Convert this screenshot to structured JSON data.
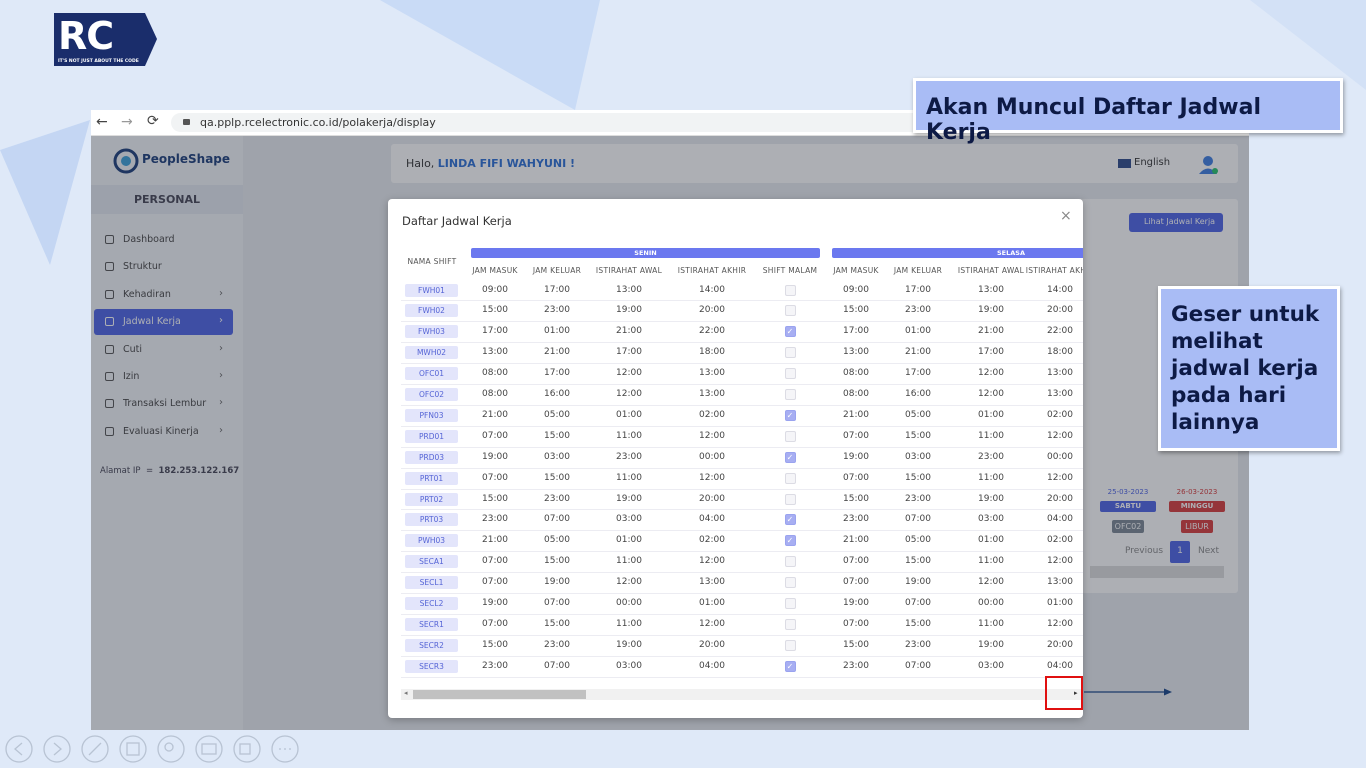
{
  "logo": {
    "mark": "RC",
    "tagline": "IT'S NOT JUST ABOUT THE CODE"
  },
  "browser": {
    "url": "qa.pplp.rcelectronic.co.id/polakerja/display"
  },
  "sidebar": {
    "brand": "PeopleShape",
    "section": "PERSONAL",
    "active_menu": 3,
    "menu": [
      {
        "label": "Dashboard",
        "submenu": false
      },
      {
        "label": "Struktur",
        "submenu": false
      },
      {
        "label": "Kehadiran",
        "submenu": true
      },
      {
        "label": "Jadwal Kerja",
        "submenu": true
      },
      {
        "label": "Cuti",
        "submenu": true
      },
      {
        "label": "Izin",
        "submenu": true
      },
      {
        "label": "Transaksi Lembur",
        "submenu": true
      },
      {
        "label": "Evaluasi Kinerja",
        "submenu": true
      }
    ],
    "ip_label": "Alamat IP",
    "ip_sep": "=",
    "ip": "182.253.122.167"
  },
  "header": {
    "greeting": "Halo,",
    "user": "LINDA FIFI WAHYUNI !",
    "language": "English"
  },
  "background": {
    "button": "Lihat Jadwal Kerja",
    "calendar": [
      {
        "date": "25-03-2023",
        "day": "SABTU",
        "shift": "OFC02"
      },
      {
        "date": "26-03-2023",
        "day": "MINGGU",
        "shift": "LIBUR"
      }
    ],
    "pagination": {
      "previous": "Previous",
      "page": "1",
      "next": "Next"
    }
  },
  "modal": {
    "title": "Daftar Jadwal Kerja",
    "close": "×",
    "table": {
      "shift_header": "NAMA SHIFT",
      "days": [
        "SENIN",
        "SELASA"
      ],
      "columns": [
        "JAM MASUK",
        "JAM KELUAR",
        "ISTIRAHAT AWAL",
        "ISTIRAHAT AKHIR",
        "SHIFT MALAM"
      ],
      "rows": [
        {
          "shift": "FWH01",
          "senin": [
            "09:00",
            "17:00",
            "13:00",
            "14:00"
          ],
          "night_shift": false,
          "selasa": [
            "09:00",
            "17:00",
            "13:00",
            "14:00"
          ]
        },
        {
          "shift": "FWH02",
          "senin": [
            "15:00",
            "23:00",
            "19:00",
            "20:00"
          ],
          "night_shift": false,
          "selasa": [
            "15:00",
            "23:00",
            "19:00",
            "20:00"
          ]
        },
        {
          "shift": "FWH03",
          "senin": [
            "17:00",
            "01:00",
            "21:00",
            "22:00"
          ],
          "night_shift": true,
          "selasa": [
            "17:00",
            "01:00",
            "21:00",
            "22:00"
          ]
        },
        {
          "shift": "MWH02",
          "senin": [
            "13:00",
            "21:00",
            "17:00",
            "18:00"
          ],
          "night_shift": false,
          "selasa": [
            "13:00",
            "21:00",
            "17:00",
            "18:00"
          ]
        },
        {
          "shift": "OFC01",
          "senin": [
            "08:00",
            "17:00",
            "12:00",
            "13:00"
          ],
          "night_shift": false,
          "selasa": [
            "08:00",
            "17:00",
            "12:00",
            "13:00"
          ]
        },
        {
          "shift": "OFC02",
          "senin": [
            "08:00",
            "16:00",
            "12:00",
            "13:00"
          ],
          "night_shift": false,
          "selasa": [
            "08:00",
            "16:00",
            "12:00",
            "13:00"
          ]
        },
        {
          "shift": "PFN03",
          "senin": [
            "21:00",
            "05:00",
            "01:00",
            "02:00"
          ],
          "night_shift": true,
          "selasa": [
            "21:00",
            "05:00",
            "01:00",
            "02:00"
          ]
        },
        {
          "shift": "PRD01",
          "senin": [
            "07:00",
            "15:00",
            "11:00",
            "12:00"
          ],
          "night_shift": false,
          "selasa": [
            "07:00",
            "15:00",
            "11:00",
            "12:00"
          ]
        },
        {
          "shift": "PRD03",
          "senin": [
            "19:00",
            "03:00",
            "23:00",
            "00:00"
          ],
          "night_shift": true,
          "selasa": [
            "19:00",
            "03:00",
            "23:00",
            "00:00"
          ]
        },
        {
          "shift": "PRT01",
          "senin": [
            "07:00",
            "15:00",
            "11:00",
            "12:00"
          ],
          "night_shift": false,
          "selasa": [
            "07:00",
            "15:00",
            "11:00",
            "12:00"
          ]
        },
        {
          "shift": "PRT02",
          "senin": [
            "15:00",
            "23:00",
            "19:00",
            "20:00"
          ],
          "night_shift": false,
          "selasa": [
            "15:00",
            "23:00",
            "19:00",
            "20:00"
          ]
        },
        {
          "shift": "PRT03",
          "senin": [
            "23:00",
            "07:00",
            "03:00",
            "04:00"
          ],
          "night_shift": true,
          "selasa": [
            "23:00",
            "07:00",
            "03:00",
            "04:00"
          ]
        },
        {
          "shift": "PWH03",
          "senin": [
            "21:00",
            "05:00",
            "01:00",
            "02:00"
          ],
          "night_shift": true,
          "selasa": [
            "21:00",
            "05:00",
            "01:00",
            "02:00"
          ]
        },
        {
          "shift": "SECA1",
          "senin": [
            "07:00",
            "15:00",
            "11:00",
            "12:00"
          ],
          "night_shift": false,
          "selasa": [
            "07:00",
            "15:00",
            "11:00",
            "12:00"
          ]
        },
        {
          "shift": "SECL1",
          "senin": [
            "07:00",
            "19:00",
            "12:00",
            "13:00"
          ],
          "night_shift": false,
          "selasa": [
            "07:00",
            "19:00",
            "12:00",
            "13:00"
          ]
        },
        {
          "shift": "SECL2",
          "senin": [
            "19:00",
            "07:00",
            "00:00",
            "01:00"
          ],
          "night_shift": false,
          "selasa": [
            "19:00",
            "07:00",
            "00:00",
            "01:00"
          ]
        },
        {
          "shift": "SECR1",
          "senin": [
            "07:00",
            "15:00",
            "11:00",
            "12:00"
          ],
          "night_shift": false,
          "selasa": [
            "07:00",
            "15:00",
            "11:00",
            "12:00"
          ]
        },
        {
          "shift": "SECR2",
          "senin": [
            "15:00",
            "23:00",
            "19:00",
            "20:00"
          ],
          "night_shift": false,
          "selasa": [
            "15:00",
            "23:00",
            "19:00",
            "20:00"
          ]
        },
        {
          "shift": "SECR3",
          "senin": [
            "23:00",
            "07:00",
            "03:00",
            "04:00"
          ],
          "night_shift": true,
          "selasa": [
            "23:00",
            "07:00",
            "03:00",
            "04:00"
          ]
        }
      ]
    }
  },
  "callouts": [
    "Akan Muncul Daftar Jadwal Kerja",
    "Geser untuk melihat jadwal kerja pada hari lainnya"
  ]
}
